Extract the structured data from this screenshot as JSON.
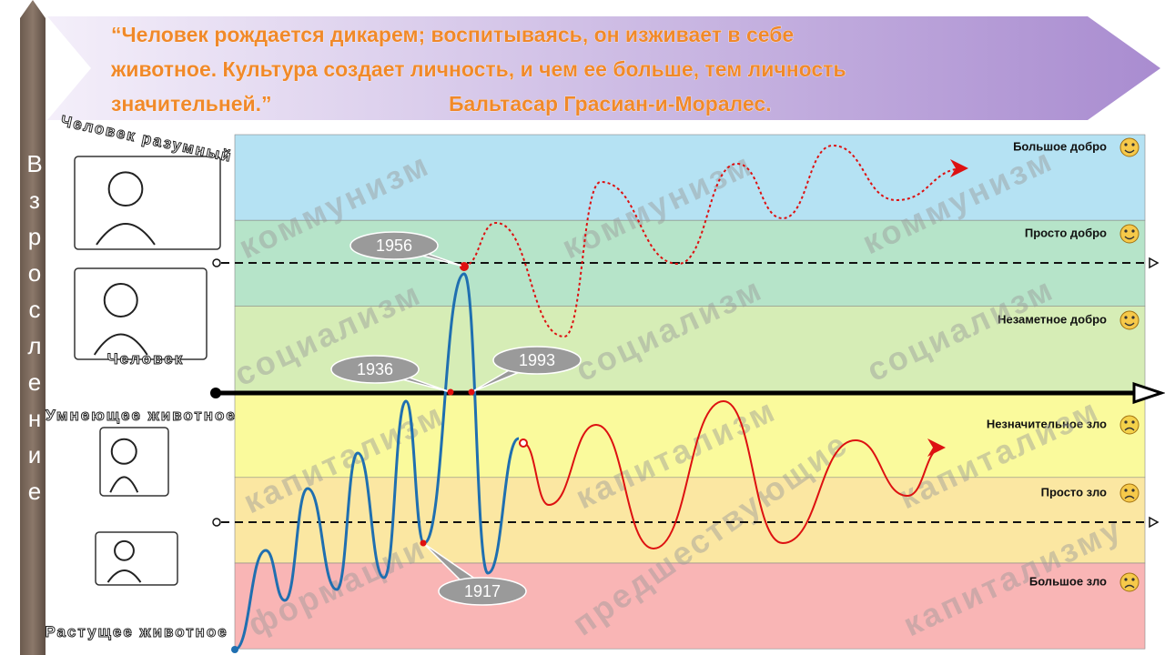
{
  "quote": {
    "lines": [
      "“Человек рождается дикарем; воспитываясь, он изживает в себе",
      "животное. Культура создает личность, и чем ее больше, тем личность",
      "значительней.”"
    ],
    "author": "Бальтасар Грасиан-и-Моралес."
  },
  "side_axis": {
    "label": "Взросление"
  },
  "stages": [
    "Человек разумный",
    "Человек",
    "Умнеющее животное",
    "Растущее животное"
  ],
  "bands": [
    {
      "label": "Большое добро",
      "color": "#b5e2f3"
    },
    {
      "label": "Просто добро",
      "color": "#b6e4c9"
    },
    {
      "label": "Незаметное добро",
      "color": "#d6edb6"
    },
    {
      "label": "Незначительное зло",
      "color": "#fafa9c"
    },
    {
      "label": "Просто зло",
      "color": "#fbe7a2"
    },
    {
      "label": "Большое зло",
      "color": "#f9b5b5"
    }
  ],
  "years": [
    "1956",
    "1936",
    "1993",
    "1917"
  ],
  "watermarks": [
    "коммунизм",
    "коммунизм",
    "коммунизм",
    "социализм",
    "социализм",
    "социализм",
    "капитализм",
    "капитализм",
    "капитализм",
    "формации",
    "предшествующие",
    "капитализму"
  ]
}
